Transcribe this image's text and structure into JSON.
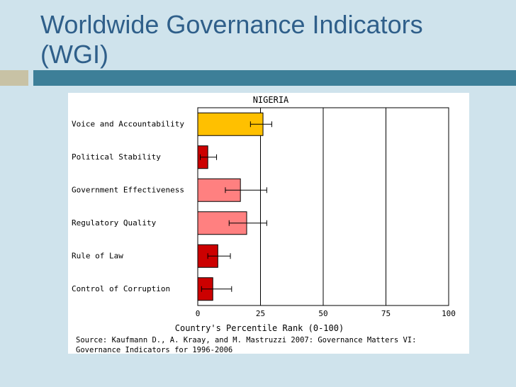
{
  "slide": {
    "title": "Worldwide Governance Indicators (WGI)",
    "source": "Source: Kaufmann D., A. Kraay, and M. Mastruzzi 2007: Governance Matters VI: Governance Indicators for 1996-2006"
  },
  "chart_data": {
    "type": "bar",
    "orientation": "horizontal",
    "title": "NIGERIA",
    "xlabel": "Country's Percentile Rank (0-100)",
    "ylabel": "",
    "xlim": [
      0,
      100
    ],
    "xticks": [
      "0",
      "25",
      "50",
      "75",
      "100"
    ],
    "gridlines_x": [
      25,
      50,
      75
    ],
    "categories": [
      "Voice and Accountability",
      "Political Stability",
      "Government Effectiveness",
      "Regulatory Quality",
      "Rule of Law",
      "Control of Corruption"
    ],
    "values": [
      26,
      4,
      17,
      19.5,
      8,
      6
    ],
    "error_low": [
      21,
      1,
      11,
      12.5,
      4,
      1.5
    ],
    "error_high": [
      29.5,
      7.5,
      27.5,
      27.5,
      13,
      13.5
    ],
    "colors": [
      "#ffc000",
      "#cc0000",
      "#ff8080",
      "#ff8080",
      "#cc0000",
      "#cc0000"
    ]
  }
}
